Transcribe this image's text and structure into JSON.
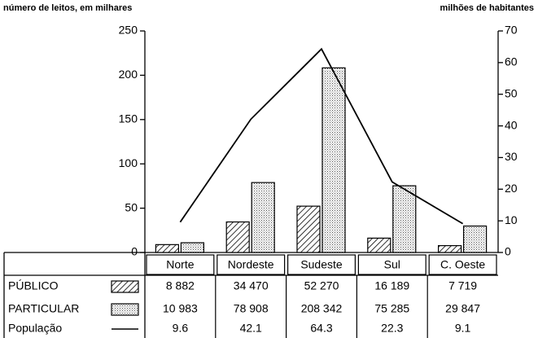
{
  "chart_data": {
    "type": "bar",
    "y_label": "número de leitos, em milhares",
    "y2_label": "milhões de habitantes",
    "categories": [
      "Norte",
      "Nordeste",
      "Sudeste",
      "Sul",
      "C. Oeste"
    ],
    "series": [
      {
        "name": "PÚBLICO",
        "pattern": "hatch",
        "color": "#000000",
        "values": [
          8.882,
          34.47,
          52.27,
          16.189,
          7.719
        ],
        "value_labels": [
          "8 882",
          "34 470",
          "52 270",
          "16 189",
          "7 719"
        ]
      },
      {
        "name": "PARTICULAR",
        "pattern": "dots",
        "color": "#000000",
        "values": [
          10.983,
          78.908,
          208.342,
          75.285,
          29.847
        ],
        "value_labels": [
          "10 983",
          "78 908",
          "208 342",
          "75 285",
          "29 847"
        ]
      },
      {
        "name": "População",
        "axis": "y2",
        "color": "#000000",
        "values": [
          9.6,
          42.1,
          64.3,
          22.3,
          9.1
        ]
      }
    ],
    "ylim": [
      0,
      250
    ],
    "yticks": [
      0,
      50,
      100,
      150,
      200,
      250
    ],
    "y2lim": [
      0,
      70
    ],
    "y2ticks": [
      0,
      10,
      20,
      30,
      40,
      50,
      60,
      70
    ]
  }
}
